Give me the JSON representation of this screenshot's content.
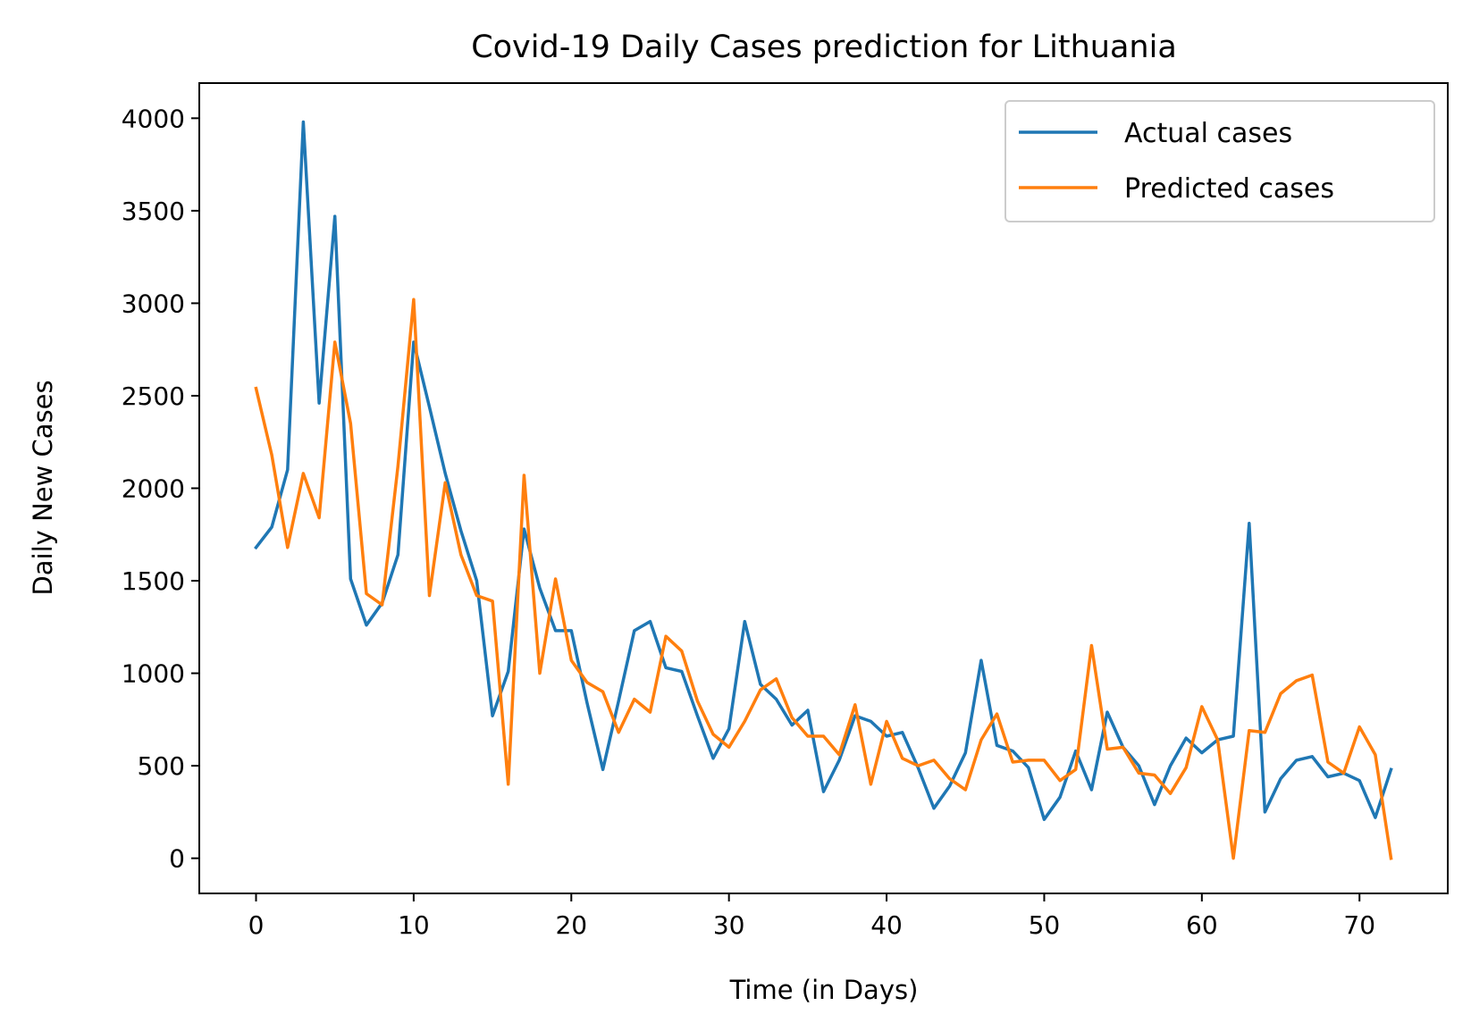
{
  "chart_data": {
    "type": "line",
    "title": "Covid-19 Daily Cases prediction for Lithuania",
    "xlabel": "Time (in Days)",
    "ylabel": "Daily New Cases",
    "xlim": [
      -3.6,
      75.6
    ],
    "ylim": [
      -190,
      4190
    ],
    "xticks": [
      0,
      10,
      20,
      30,
      40,
      50,
      60,
      70
    ],
    "yticks": [
      0,
      500,
      1000,
      1500,
      2000,
      2500,
      3000,
      3500,
      4000
    ],
    "grid": false,
    "legend_position": "top-right",
    "series": [
      {
        "name": "Actual cases",
        "color": "#1f77b4",
        "values": [
          1680,
          1790,
          2100,
          3980,
          2460,
          3470,
          1510,
          1260,
          1380,
          1640,
          2790,
          2440,
          2080,
          1770,
          1500,
          770,
          1010,
          1780,
          1460,
          1230,
          1230,
          840,
          480,
          850,
          1230,
          1280,
          1030,
          1010,
          770,
          540,
          700,
          1280,
          940,
          860,
          720,
          800,
          360,
          530,
          770,
          740,
          660,
          680,
          490,
          270,
          390,
          570,
          1070,
          610,
          580,
          490,
          210,
          330,
          580,
          370,
          790,
          600,
          500,
          290,
          500,
          650,
          570,
          640,
          660,
          1810,
          250,
          430,
          530,
          550,
          440,
          460,
          420,
          220,
          480
        ]
      },
      {
        "name": "Predicted cases",
        "color": "#ff7f0e",
        "values": [
          2540,
          2180,
          1680,
          2080,
          1840,
          2790,
          2350,
          1430,
          1370,
          2120,
          3020,
          1420,
          2030,
          1640,
          1420,
          1390,
          400,
          2070,
          1000,
          1510,
          1070,
          950,
          900,
          680,
          860,
          790,
          1200,
          1120,
          850,
          670,
          600,
          740,
          910,
          970,
          760,
          660,
          660,
          560,
          830,
          400,
          740,
          540,
          500,
          530,
          430,
          370,
          640,
          780,
          520,
          530,
          530,
          420,
          480,
          1150,
          590,
          600,
          460,
          450,
          350,
          490,
          820,
          640,
          0,
          690,
          680,
          890,
          960,
          990,
          520,
          460,
          710,
          560,
          0
        ]
      }
    ]
  }
}
